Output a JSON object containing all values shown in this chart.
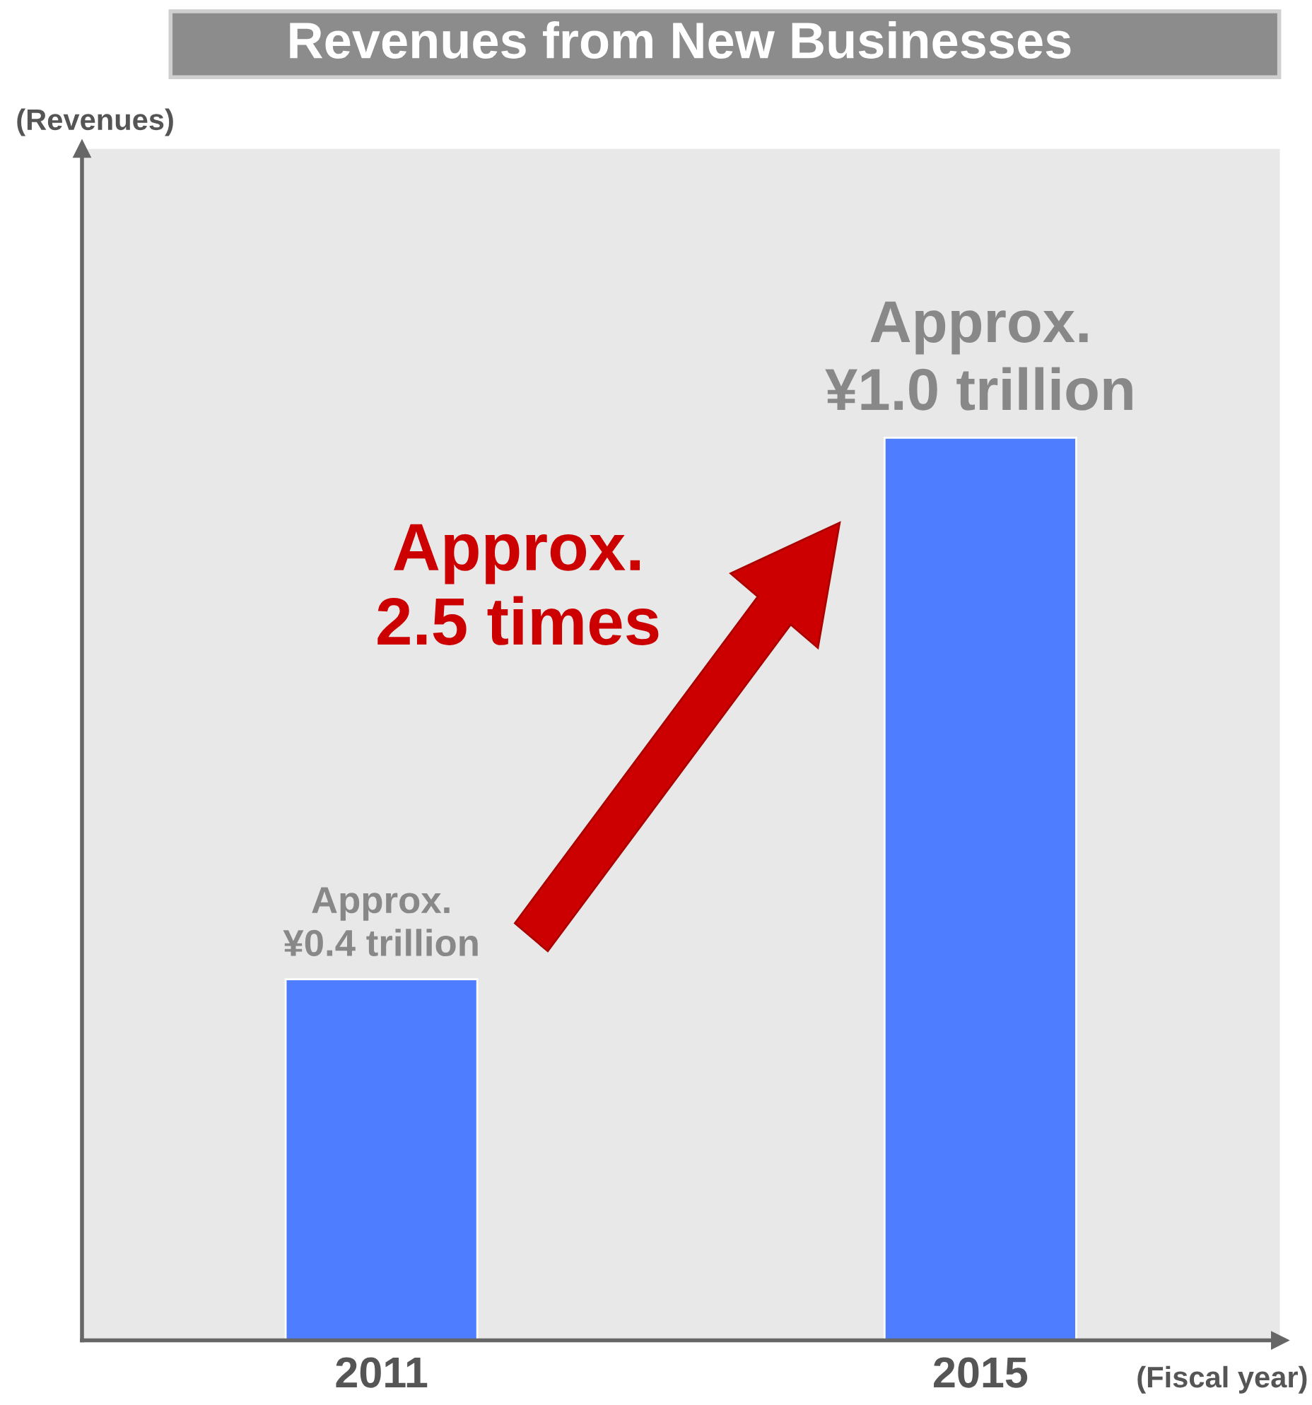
{
  "chart_data": {
    "type": "bar",
    "title": "Revenues from New Businesses",
    "xlabel": "(Fiscal year)",
    "ylabel": "(Revenues)",
    "categories": [
      "2011",
      "2015"
    ],
    "values": [
      0.4,
      1.0
    ],
    "value_labels": [
      "Approx.\n¥0.4 trillion",
      "Approx.\n¥1.0 trillion"
    ],
    "color": "#4f7dff",
    "ylim": [
      0,
      1.32
    ],
    "tick_labels": "x",
    "grid": false,
    "annotations": [
      "Approx.\n2.5 times"
    ]
  }
}
